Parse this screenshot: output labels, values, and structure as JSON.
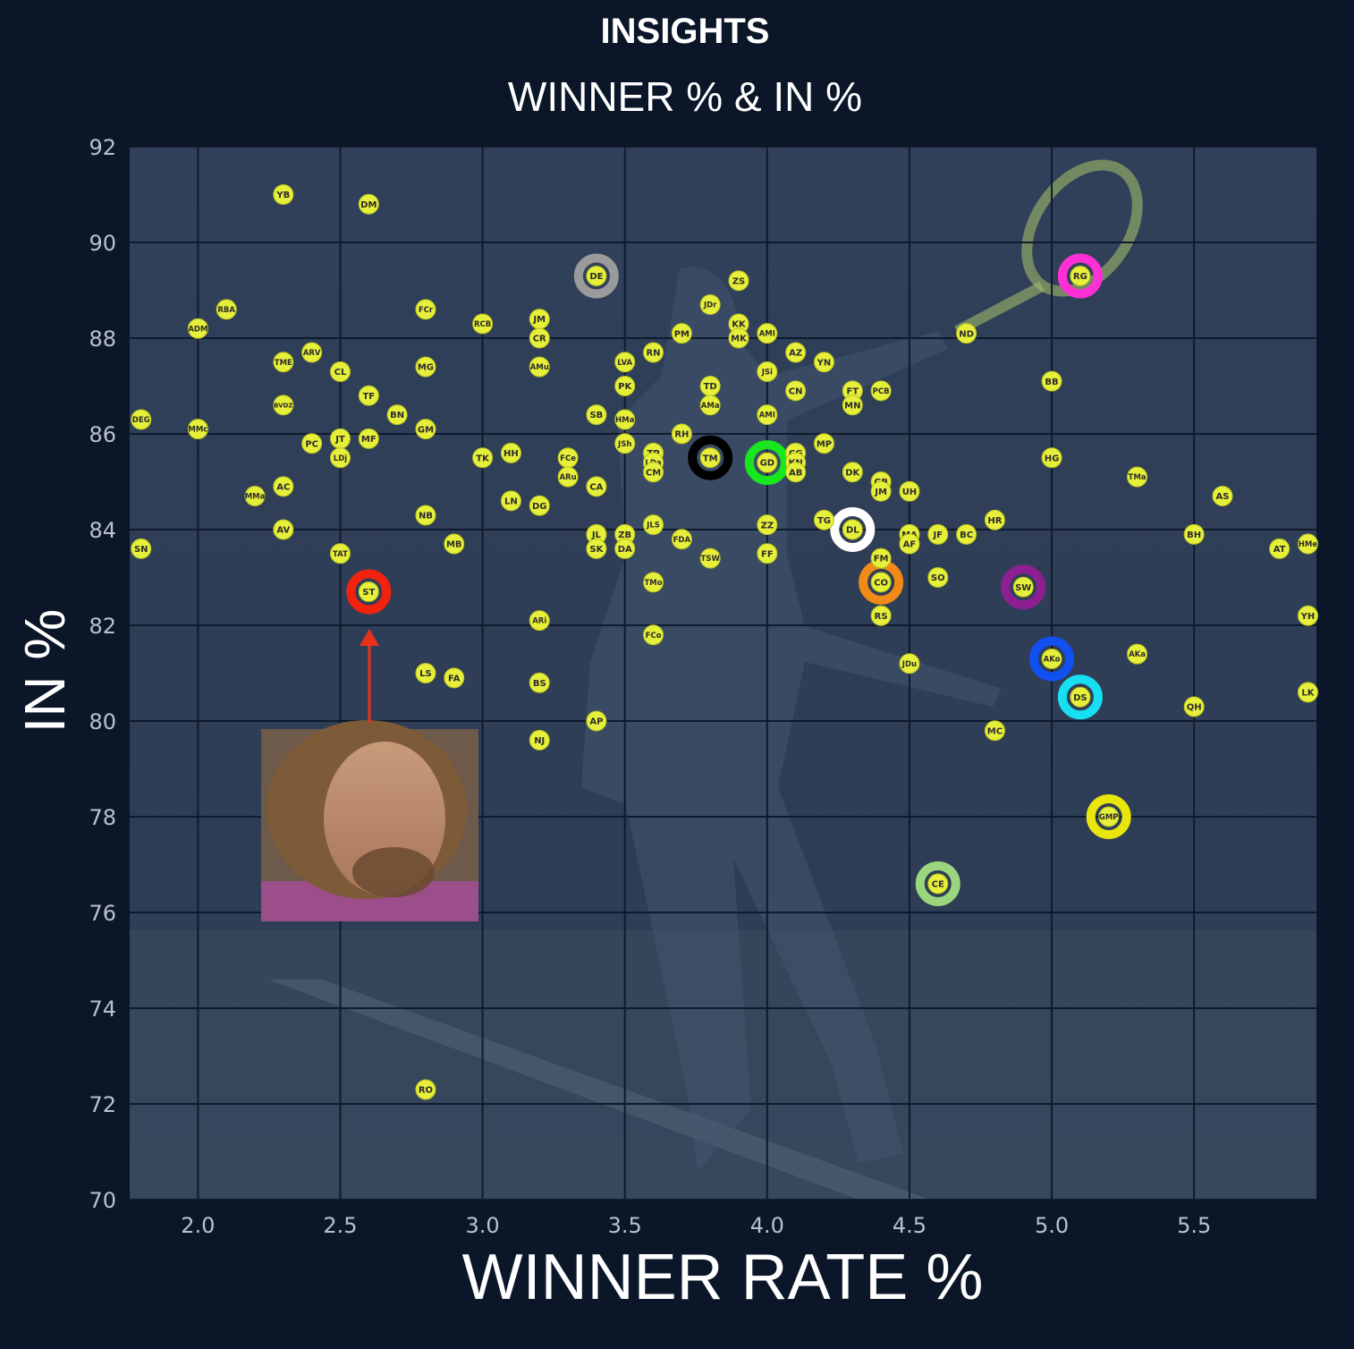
{
  "chart_data": {
    "type": "scatter",
    "title": "INSIGHTS",
    "subtitle": "WINNER % & IN %",
    "xlabel": "WINNER RATE %",
    "ylabel": "IN %",
    "xlim": [
      1.76,
      5.93
    ],
    "ylim": [
      70,
      92
    ],
    "xticks": [
      "2.0",
      "2.5",
      "3.0",
      "3.5",
      "4.0",
      "4.5",
      "5.0",
      "5.5"
    ],
    "yticks": [
      "70",
      "72",
      "74",
      "76",
      "78",
      "80",
      "82",
      "84",
      "86",
      "88",
      "90",
      "92"
    ],
    "grid": true,
    "dot_color": "#e6ef3a",
    "annotation": "red arrow from player photo pointing to ST",
    "points": [
      {
        "label": "YB",
        "x": 2.3,
        "y": 91.0
      },
      {
        "label": "DM",
        "x": 2.6,
        "y": 90.8
      },
      {
        "label": "RBA",
        "x": 2.1,
        "y": 88.6
      },
      {
        "label": "ADM",
        "x": 2.0,
        "y": 88.2
      },
      {
        "label": "TME",
        "x": 2.3,
        "y": 87.5
      },
      {
        "label": "ARV",
        "x": 2.4,
        "y": 87.7
      },
      {
        "label": "CL",
        "x": 2.5,
        "y": 87.3
      },
      {
        "label": "TF",
        "x": 2.6,
        "y": 86.8
      },
      {
        "label": "BVDZ",
        "x": 2.3,
        "y": 86.6
      },
      {
        "label": "BN",
        "x": 2.7,
        "y": 86.4
      },
      {
        "label": "DEG",
        "x": 1.8,
        "y": 86.3
      },
      {
        "label": "MMc",
        "x": 2.0,
        "y": 86.1
      },
      {
        "label": "GM",
        "x": 2.8,
        "y": 86.1
      },
      {
        "label": "PC",
        "x": 2.4,
        "y": 85.8
      },
      {
        "label": "JT",
        "x": 2.5,
        "y": 85.9
      },
      {
        "label": "MF",
        "x": 2.6,
        "y": 85.9
      },
      {
        "label": "LDj",
        "x": 2.5,
        "y": 85.5
      },
      {
        "label": "AC",
        "x": 2.3,
        "y": 84.9
      },
      {
        "label": "MMa",
        "x": 2.2,
        "y": 84.7
      },
      {
        "label": "NB",
        "x": 2.8,
        "y": 84.3
      },
      {
        "label": "AV",
        "x": 2.3,
        "y": 84.0
      },
      {
        "label": "MB",
        "x": 2.9,
        "y": 83.7
      },
      {
        "label": "SN",
        "x": 1.8,
        "y": 83.6
      },
      {
        "label": "TAT",
        "x": 2.5,
        "y": 83.5
      },
      {
        "label": "FCr",
        "x": 2.8,
        "y": 88.6
      },
      {
        "label": "MG",
        "x": 2.8,
        "y": 87.4
      },
      {
        "label": "RCB",
        "x": 3.0,
        "y": 88.3
      },
      {
        "label": "JM",
        "x": 3.2,
        "y": 88.4
      },
      {
        "label": "CR",
        "x": 3.2,
        "y": 88.0
      },
      {
        "label": "AMu",
        "x": 3.2,
        "y": 87.4
      },
      {
        "label": "TK",
        "x": 3.0,
        "y": 85.5
      },
      {
        "label": "HH",
        "x": 3.1,
        "y": 85.6
      },
      {
        "label": "FCe",
        "x": 3.3,
        "y": 85.5
      },
      {
        "label": "ARu",
        "x": 3.3,
        "y": 85.1
      },
      {
        "label": "CA",
        "x": 3.4,
        "y": 84.9
      },
      {
        "label": "LN",
        "x": 3.1,
        "y": 84.6
      },
      {
        "label": "DG",
        "x": 3.2,
        "y": 84.5
      },
      {
        "label": "JL",
        "x": 3.4,
        "y": 83.9
      },
      {
        "label": "SK",
        "x": 3.4,
        "y": 83.6
      },
      {
        "label": "ZB",
        "x": 3.5,
        "y": 83.9
      },
      {
        "label": "DA",
        "x": 3.5,
        "y": 83.6
      },
      {
        "label": "SB",
        "x": 3.4,
        "y": 86.4
      },
      {
        "label": "HMa",
        "x": 3.5,
        "y": 86.3
      },
      {
        "label": "JSh",
        "x": 3.5,
        "y": 85.8
      },
      {
        "label": "LVA",
        "x": 3.5,
        "y": 87.5
      },
      {
        "label": "PK",
        "x": 3.5,
        "y": 87.0
      },
      {
        "label": "RN",
        "x": 3.6,
        "y": 87.7
      },
      {
        "label": "PM",
        "x": 3.7,
        "y": 88.1
      },
      {
        "label": "JDr",
        "x": 3.8,
        "y": 88.7
      },
      {
        "label": "ZS",
        "x": 3.9,
        "y": 89.2
      },
      {
        "label": "KK",
        "x": 3.9,
        "y": 88.3
      },
      {
        "label": "MK",
        "x": 3.9,
        "y": 88.0
      },
      {
        "label": "AMI",
        "x": 4.0,
        "y": 88.1
      },
      {
        "label": "AZ",
        "x": 4.1,
        "y": 87.7
      },
      {
        "label": "YN",
        "x": 4.2,
        "y": 87.5
      },
      {
        "label": "JSi",
        "x": 4.0,
        "y": 87.3
      },
      {
        "label": "TD",
        "x": 3.8,
        "y": 87.0
      },
      {
        "label": "AMa",
        "x": 3.8,
        "y": 86.6
      },
      {
        "label": "CN",
        "x": 4.1,
        "y": 86.9
      },
      {
        "label": "FT",
        "x": 4.3,
        "y": 86.9
      },
      {
        "label": "MN",
        "x": 4.3,
        "y": 86.6
      },
      {
        "label": "PCB",
        "x": 4.4,
        "y": 86.9
      },
      {
        "label": "AMI",
        "x": 4.0,
        "y": 86.4
      },
      {
        "label": "RH",
        "x": 3.7,
        "y": 86.0
      },
      {
        "label": "MP",
        "x": 4.2,
        "y": 85.8
      },
      {
        "label": "TP",
        "x": 3.6,
        "y": 85.6
      },
      {
        "label": "LDa",
        "x": 3.6,
        "y": 85.4
      },
      {
        "label": "CM",
        "x": 3.6,
        "y": 85.2
      },
      {
        "label": "TM",
        "x": 3.8,
        "y": 85.5
      },
      {
        "label": "GD",
        "x": 4.0,
        "y": 85.4
      },
      {
        "label": "CG",
        "x": 4.1,
        "y": 85.6
      },
      {
        "label": "KN",
        "x": 4.1,
        "y": 85.4
      },
      {
        "label": "AB",
        "x": 4.1,
        "y": 85.2
      },
      {
        "label": "DK",
        "x": 4.3,
        "y": 85.2
      },
      {
        "label": "GB",
        "x": 4.4,
        "y": 85.0
      },
      {
        "label": "JM",
        "x": 4.4,
        "y": 84.8
      },
      {
        "label": "UH",
        "x": 4.5,
        "y": 84.8
      },
      {
        "label": "JLS",
        "x": 3.6,
        "y": 84.1
      },
      {
        "label": "FDA",
        "x": 3.7,
        "y": 83.8
      },
      {
        "label": "ZZ",
        "x": 4.0,
        "y": 84.1
      },
      {
        "label": "TG",
        "x": 4.2,
        "y": 84.2
      },
      {
        "label": "DL",
        "x": 4.3,
        "y": 84.0
      },
      {
        "label": "TSW",
        "x": 3.8,
        "y": 83.4
      },
      {
        "label": "FF",
        "x": 4.0,
        "y": 83.5
      },
      {
        "label": "FM",
        "x": 4.4,
        "y": 83.4
      },
      {
        "label": "MA",
        "x": 4.5,
        "y": 83.9
      },
      {
        "label": "AF",
        "x": 4.5,
        "y": 83.7
      },
      {
        "label": "JF",
        "x": 4.6,
        "y": 83.9
      },
      {
        "label": "BC",
        "x": 4.7,
        "y": 83.9
      },
      {
        "label": "HR",
        "x": 4.8,
        "y": 84.2
      },
      {
        "label": "SO",
        "x": 4.6,
        "y": 83.0
      },
      {
        "label": "CO",
        "x": 4.4,
        "y": 82.9
      },
      {
        "label": "RS",
        "x": 4.4,
        "y": 82.2
      },
      {
        "label": "TMo",
        "x": 3.6,
        "y": 82.9
      },
      {
        "label": "ARi",
        "x": 3.2,
        "y": 82.1
      },
      {
        "label": "FCo",
        "x": 3.6,
        "y": 81.8
      },
      {
        "label": "ST",
        "x": 2.6,
        "y": 82.7
      },
      {
        "label": "LS",
        "x": 2.8,
        "y": 81.0
      },
      {
        "label": "FA",
        "x": 2.9,
        "y": 80.9
      },
      {
        "label": "BS",
        "x": 3.2,
        "y": 80.8
      },
      {
        "label": "AP",
        "x": 3.4,
        "y": 80.0
      },
      {
        "label": "NJ",
        "x": 3.2,
        "y": 79.6
      },
      {
        "label": "RO",
        "x": 2.8,
        "y": 72.3
      },
      {
        "label": "DE",
        "x": 3.4,
        "y": 89.3
      },
      {
        "label": "ND",
        "x": 4.7,
        "y": 88.1
      },
      {
        "label": "RG",
        "x": 5.1,
        "y": 89.3
      },
      {
        "label": "BB",
        "x": 5.0,
        "y": 87.1
      },
      {
        "label": "HG",
        "x": 5.0,
        "y": 85.5
      },
      {
        "label": "TMa",
        "x": 5.3,
        "y": 85.1
      },
      {
        "label": "AS",
        "x": 5.6,
        "y": 84.7
      },
      {
        "label": "BH",
        "x": 5.5,
        "y": 83.9
      },
      {
        "label": "AT",
        "x": 5.8,
        "y": 83.6
      },
      {
        "label": "HMe",
        "x": 5.9,
        "y": 83.7
      },
      {
        "label": "SW",
        "x": 4.9,
        "y": 82.8
      },
      {
        "label": "YH",
        "x": 5.9,
        "y": 82.2
      },
      {
        "label": "JDu",
        "x": 4.5,
        "y": 81.2
      },
      {
        "label": "AKo",
        "x": 5.0,
        "y": 81.3
      },
      {
        "label": "AKa",
        "x": 5.3,
        "y": 81.4
      },
      {
        "label": "DS",
        "x": 5.1,
        "y": 80.5
      },
      {
        "label": "QH",
        "x": 5.5,
        "y": 80.3
      },
      {
        "label": "LK",
        "x": 5.9,
        "y": 80.6
      },
      {
        "label": "MC",
        "x": 4.8,
        "y": 79.8
      },
      {
        "label": "GMP",
        "x": 5.2,
        "y": 78.0
      },
      {
        "label": "CE",
        "x": 4.6,
        "y": 76.6
      }
    ],
    "highlights": [
      {
        "label": "DE",
        "color": "#9a9a9a"
      },
      {
        "label": "RG",
        "color": "#ff2fd6"
      },
      {
        "label": "TM",
        "color": "#000000"
      },
      {
        "label": "GD",
        "color": "#18e61e"
      },
      {
        "label": "DL",
        "color": "#ffffff"
      },
      {
        "label": "CO",
        "color": "#f18a17"
      },
      {
        "label": "SW",
        "color": "#8e1f93"
      },
      {
        "label": "ST",
        "color": "#f2220f"
      },
      {
        "label": "AKo",
        "color": "#1250f2"
      },
      {
        "label": "DS",
        "color": "#18def2"
      },
      {
        "label": "GMP",
        "color": "#eae60b"
      },
      {
        "label": "CE",
        "color": "#9bd67e"
      }
    ]
  },
  "colors": {
    "background": "#0b1628",
    "plot_area": "#2c3a52",
    "grid": "#0f1a2c",
    "arrow": "#e8321c"
  }
}
